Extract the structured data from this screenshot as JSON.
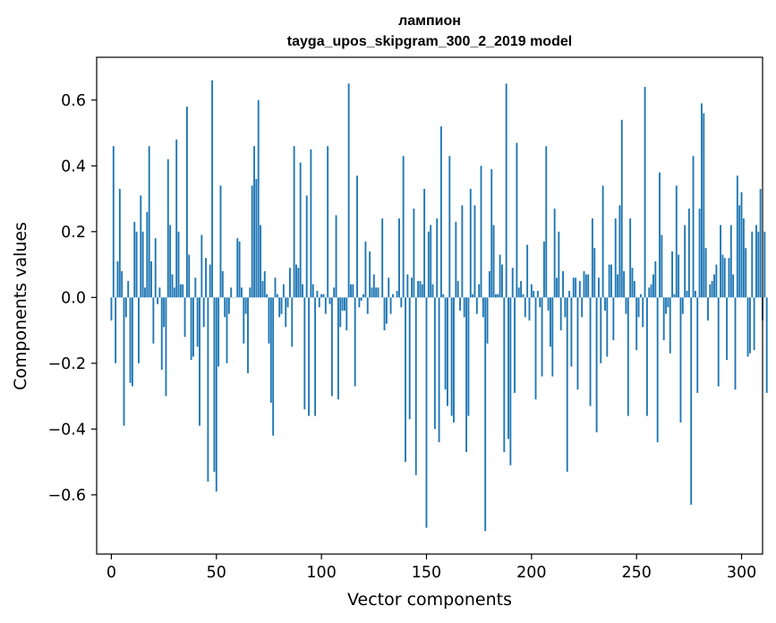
{
  "chart_data": {
    "type": "bar",
    "title": "лампион",
    "subtitle": "tayga_upos_skipgram_300_2_2019 model",
    "xlabel": "Vector components",
    "ylabel": "Components values",
    "xlim": [
      -7,
      310
    ],
    "ylim": [
      -0.78,
      0.73
    ],
    "x_ticks": [
      0,
      50,
      100,
      150,
      200,
      250,
      300
    ],
    "x_tick_labels": [
      "0",
      "50",
      "100",
      "150",
      "200",
      "250",
      "300"
    ],
    "y_ticks": [
      -0.6,
      -0.4,
      -0.2,
      0.0,
      0.2,
      0.4,
      0.6
    ],
    "y_tick_labels": [
      "−0.6",
      "−0.4",
      "−0.2",
      "0.0",
      "0.2",
      "0.4",
      "0.6"
    ],
    "bar_color": "#1f77b4",
    "grid": false,
    "series": [
      {
        "values": [
          -0.07,
          0.46,
          -0.2,
          0.11,
          0.33,
          0.08,
          -0.39,
          -0.06,
          0.05,
          -0.26,
          -0.27,
          0.23,
          0.2,
          -0.2,
          0.31,
          0.2,
          0.03,
          0.26,
          0.46,
          0.11,
          -0.14,
          0.18,
          -0.02,
          0.03,
          -0.22,
          -0.09,
          -0.3,
          0.42,
          0.22,
          0.07,
          0.03,
          0.48,
          0.2,
          0.04,
          0.04,
          -0.12,
          0.58,
          0.13,
          -0.19,
          -0.18,
          0.06,
          -0.15,
          -0.39,
          0.19,
          -0.09,
          0.12,
          -0.56,
          0.1,
          0.66,
          -0.53,
          -0.59,
          -0.21,
          0.34,
          0.08,
          -0.06,
          -0.2,
          -0.05,
          0.03,
          0.0,
          0.0,
          0.18,
          0.17,
          0.03,
          -0.14,
          -0.05,
          -0.23,
          0.03,
          0.34,
          0.46,
          0.36,
          0.6,
          0.22,
          0.05,
          0.08,
          0.01,
          -0.14,
          -0.32,
          -0.42,
          0.06,
          0.01,
          -0.06,
          -0.05,
          0.04,
          -0.09,
          -0.03,
          0.09,
          -0.15,
          0.46,
          0.1,
          0.09,
          0.41,
          0.04,
          -0.34,
          0.31,
          -0.36,
          0.45,
          0.04,
          -0.36,
          0.02,
          -0.03,
          0.01,
          0.01,
          -0.05,
          0.46,
          -0.02,
          -0.3,
          0.03,
          0.25,
          -0.31,
          -0.09,
          -0.04,
          -0.04,
          -0.1,
          0.65,
          0.04,
          0.04,
          -0.27,
          0.37,
          -0.03,
          -0.01,
          0.01,
          0.17,
          -0.05,
          0.14,
          0.03,
          0.07,
          0.03,
          0.03,
          0.0,
          0.24,
          -0.1,
          -0.08,
          0.06,
          -0.05,
          0.01,
          0.0,
          0.02,
          0.24,
          -0.03,
          0.43,
          -0.5,
          0.07,
          -0.37,
          0.06,
          0.27,
          -0.54,
          0.05,
          0.05,
          0.04,
          0.33,
          -0.7,
          0.2,
          0.22,
          0.04,
          -0.4,
          0.24,
          -0.44,
          0.52,
          0.01,
          -0.28,
          -0.33,
          0.43,
          -0.36,
          -0.38,
          0.23,
          0.05,
          -0.04,
          0.28,
          -0.06,
          -0.47,
          -0.36,
          0.33,
          0.01,
          0.28,
          -0.05,
          0.04,
          0.4,
          -0.06,
          -0.71,
          -0.14,
          0.08,
          0.39,
          0.22,
          0.01,
          0.01,
          0.13,
          0.1,
          -0.47,
          0.65,
          -0.43,
          -0.51,
          0.09,
          -0.29,
          0.47,
          0.03,
          0.05,
          0.01,
          -0.06,
          0.16,
          -0.07,
          0.04,
          0.02,
          -0.31,
          0.02,
          -0.03,
          -0.24,
          0.17,
          0.46,
          -0.04,
          -0.15,
          -0.24,
          0.27,
          0.06,
          0.2,
          -0.1,
          0.08,
          -0.06,
          -0.53,
          0.02,
          -0.21,
          0.06,
          0.06,
          -0.28,
          0.05,
          -0.06,
          0.08,
          0.07,
          0.07,
          -0.33,
          0.24,
          0.15,
          -0.41,
          0.06,
          -0.2,
          0.34,
          -0.04,
          -0.18,
          0.1,
          0.1,
          -0.13,
          0.24,
          0.07,
          0.28,
          0.54,
          0.08,
          -0.05,
          -0.36,
          0.24,
          0.09,
          0.05,
          -0.16,
          -0.06,
          0.01,
          -0.09,
          0.64,
          -0.36,
          0.03,
          0.04,
          0.07,
          0.11,
          -0.44,
          0.38,
          0.19,
          -0.13,
          -0.05,
          -0.03,
          -0.17,
          0.14,
          0.01,
          0.34,
          0.13,
          -0.38,
          -0.05,
          0.22,
          0.02,
          0.27,
          -0.63,
          0.43,
          0.02,
          -0.29,
          0.27,
          0.59,
          0.56,
          0.15,
          -0.07,
          0.04,
          0.05,
          0.07,
          0.1,
          -0.27,
          0.22,
          0.13,
          0.12,
          -0.19,
          0.12,
          0.22,
          0.07,
          -0.28,
          0.37,
          0.28,
          0.32,
          0.24,
          0.15,
          -0.18,
          -0.17,
          0.2,
          -0.16,
          0.22,
          0.2,
          0.33,
          -0.07,
          0.2,
          -0.29
        ]
      }
    ]
  }
}
